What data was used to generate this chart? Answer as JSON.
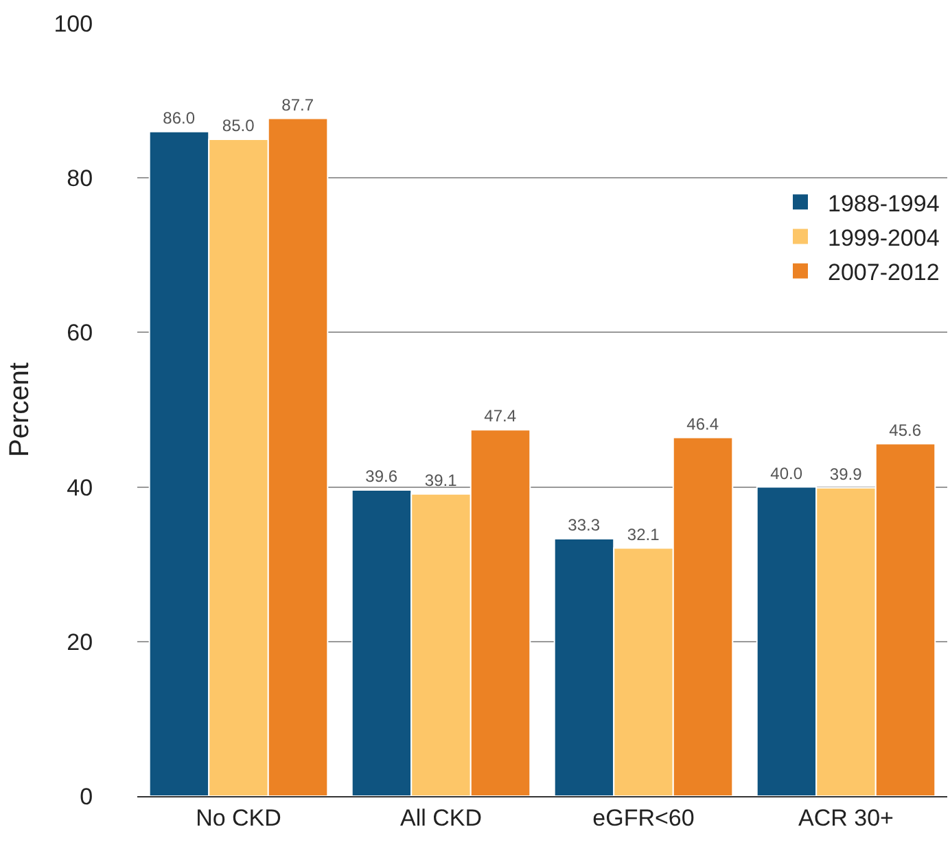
{
  "chart_data": {
    "type": "bar",
    "ylabel": "Percent",
    "categories": [
      "No CKD",
      "All CKD",
      "eGFR<60",
      "ACR 30+"
    ],
    "series": [
      {
        "name": "1988-1994",
        "color": "#0f5480",
        "values": [
          86.0,
          39.6,
          33.3,
          40.0
        ]
      },
      {
        "name": "1999-2004",
        "color": "#fdc668",
        "values": [
          85.0,
          39.1,
          32.1,
          39.9
        ]
      },
      {
        "name": "2007-2012",
        "color": "#ec8224",
        "values": [
          87.7,
          47.4,
          46.4,
          45.6
        ]
      }
    ],
    "value_labels": [
      [
        "86.0",
        "39.6",
        "33.3",
        "40.0"
      ],
      [
        "85.0",
        "39.1",
        "32.1",
        "39.9"
      ],
      [
        "87.7",
        "47.4",
        "46.4",
        "45.6"
      ]
    ],
    "ylim": [
      0,
      100
    ],
    "yticks": [
      0,
      20,
      40,
      60,
      80,
      100
    ],
    "grid": "y",
    "legend": "right"
  }
}
